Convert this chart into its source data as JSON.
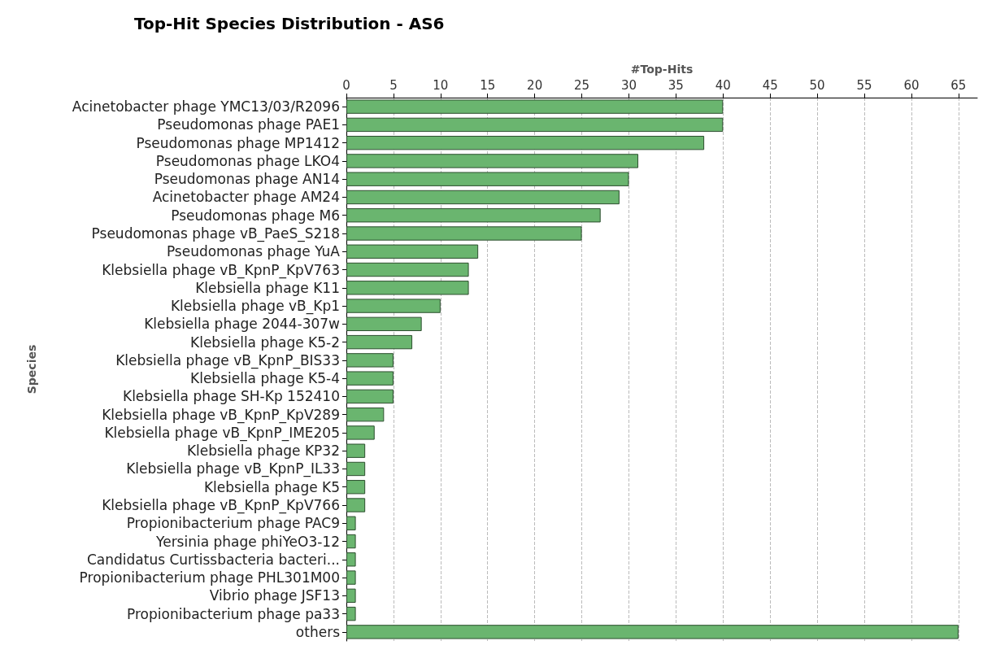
{
  "chart_data": {
    "type": "bar",
    "orientation": "horizontal",
    "title": "Top-Hit Species Distribution - AS6",
    "xlabel": "#Top-Hits",
    "ylabel": "Species",
    "categories": [
      "Acinetobacter phage YMC13/03/R2096",
      "Pseudomonas phage PAE1",
      "Pseudomonas phage MP1412",
      "Pseudomonas phage LKO4",
      "Pseudomonas phage AN14",
      "Acinetobacter phage AM24",
      "Pseudomonas phage M6",
      "Pseudomonas phage vB_PaeS_S218",
      "Pseudomonas phage YuA",
      "Klebsiella phage vB_KpnP_KpV763",
      "Klebsiella phage K11",
      "Klebsiella phage vB_Kp1",
      "Klebsiella phage 2044-307w",
      "Klebsiella phage K5-2",
      "Klebsiella phage vB_KpnP_BIS33",
      "Klebsiella phage K5-4",
      "Klebsiella phage SH-Kp 152410",
      "Klebsiella phage vB_KpnP_KpV289",
      "Klebsiella phage vB_KpnP_IME205",
      "Klebsiella phage KP32",
      "Klebsiella phage vB_KpnP_IL33",
      "Klebsiella phage K5",
      "Klebsiella phage vB_KpnP_KpV766",
      "Propionibacterium phage PAC9",
      "Yersinia phage phiYeO3-12",
      "Candidatus Curtissbacteria bacteri...",
      "Propionibacterium phage PHL301M00",
      "Vibrio phage JSF13",
      "Propionibacterium phage pa33",
      "others"
    ],
    "values": [
      40,
      40,
      38,
      31,
      30,
      29,
      27,
      25,
      14,
      13,
      13,
      10,
      8,
      7,
      5,
      5,
      5,
      4,
      3,
      2,
      2,
      2,
      2,
      1,
      1,
      1,
      1,
      1,
      1,
      65
    ],
    "color": "#6ab56f",
    "xlim": [
      0,
      67
    ],
    "xticks": [
      0,
      5,
      10,
      15,
      20,
      25,
      30,
      35,
      40,
      45,
      50,
      55,
      60,
      65
    ],
    "grid": "x"
  }
}
